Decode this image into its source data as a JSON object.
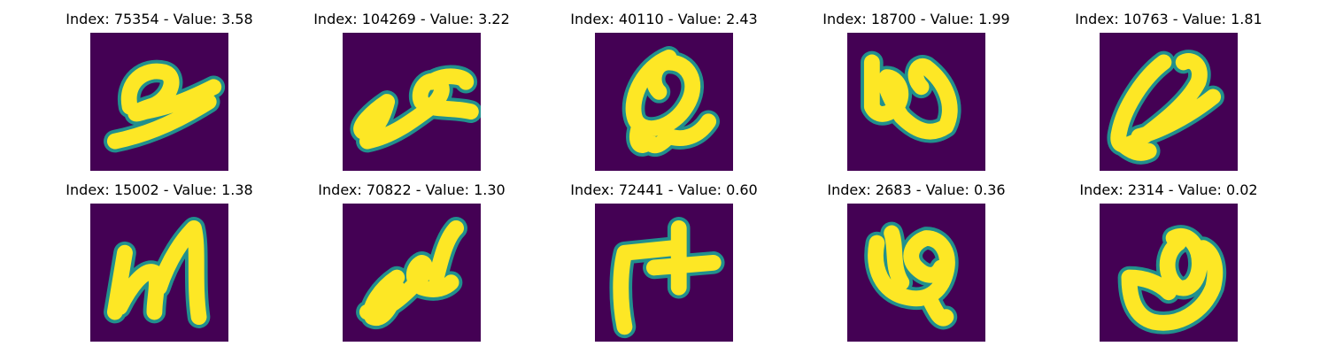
{
  "figure": {
    "colors": {
      "background": "#440154",
      "stroke_mid": "#21908d",
      "stroke_core": "#fde725"
    },
    "panels": [
      {
        "title": "Index: 75354 - Value: 3.58"
      },
      {
        "title": "Index: 104269 - Value: 3.22"
      },
      {
        "title": "Index: 40110 - Value: 2.43"
      },
      {
        "title": "Index: 18700 - Value: 1.99"
      },
      {
        "title": "Index: 10763 - Value: 1.81"
      },
      {
        "title": "Index: 15002 - Value: 1.38"
      },
      {
        "title": "Index: 70822 - Value: 1.30"
      },
      {
        "title": "Index: 72441 - Value: 0.60"
      },
      {
        "title": "Index: 2683 - Value: 0.36"
      },
      {
        "title": "Index: 2314 - Value: 0.02"
      }
    ]
  }
}
